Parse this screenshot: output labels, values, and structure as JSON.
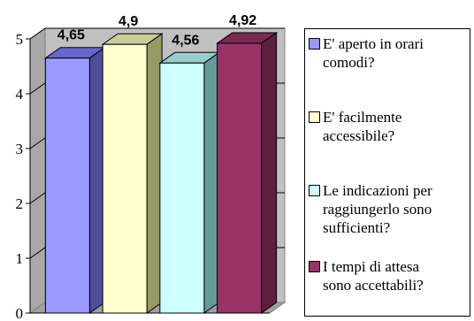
{
  "chart_data": {
    "type": "bar",
    "categories": [
      "E' aperto in orari comodi?",
      "E' facilmente accessibile?",
      "Le indicazioni per raggiungerlo sono sufficienti?",
      "I tempi di attesa sono accettabili?"
    ],
    "values": [
      4.65,
      4.9,
      4.56,
      4.92
    ],
    "value_labels": [
      "4,65",
      "4,9",
      "4,56",
      "4,92"
    ],
    "ylim": [
      0,
      5
    ],
    "yticks": [
      0,
      1,
      2,
      3,
      4,
      5
    ],
    "title": "",
    "xlabel": "",
    "ylabel": "",
    "grid": true,
    "legend_position": "right",
    "style": "3d",
    "colors": [
      {
        "front": "#9999ff",
        "top": "#6666cc",
        "side": "#4d4d99"
      },
      {
        "front": "#ffffcc",
        "top": "#cccc99",
        "side": "#999966"
      },
      {
        "front": "#ccffff",
        "top": "#99cccc",
        "side": "#669999"
      },
      {
        "front": "#993366",
        "top": "#7a2952",
        "side": "#5c1f3d"
      }
    ],
    "wall_color": "#c0c0c0"
  },
  "legend": {
    "items": [
      {
        "line1": "E' aperto in orari",
        "line2": "comodi?",
        "line3": "",
        "color": "#9999ff"
      },
      {
        "line1": "E' facilmente",
        "line2": "accessibile?",
        "line3": "",
        "color": "#ffffcc"
      },
      {
        "line1": "Le indicazioni per",
        "line2": "raggiungerlo sono",
        "line3": "sufficienti?",
        "color": "#ccffff"
      },
      {
        "line1": "I tempi di attesa",
        "line2": "sono accettabili?",
        "line3": "",
        "color": "#993366"
      }
    ]
  }
}
